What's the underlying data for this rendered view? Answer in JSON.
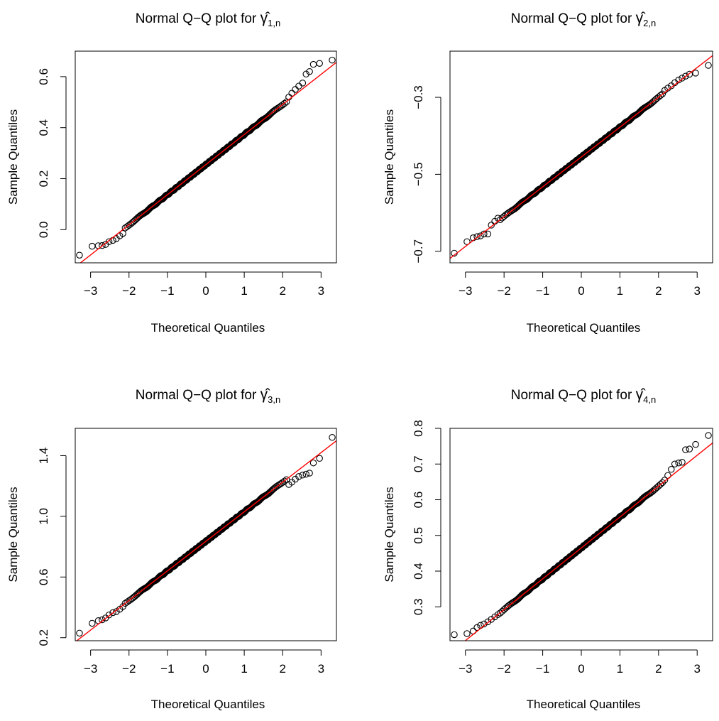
{
  "figure": {
    "background": "#ffffff",
    "point_color": "#000000",
    "line_color": "#ff0000"
  },
  "chart_data": [
    {
      "type": "scatter",
      "title": "Normal Q−Q plot for ",
      "title_symbol": "γ̂",
      "title_subscript": "1,n",
      "xlabel": "Theoretical Quantiles",
      "ylabel": "Sample Quantiles",
      "xlim": [
        -3.4,
        3.4
      ],
      "ylim": [
        -0.13,
        0.7
      ],
      "xticks": [
        "−3",
        "−2",
        "−1",
        "0",
        "1",
        "2",
        "3"
      ],
      "xtick_values": [
        -3,
        -2,
        -1,
        0,
        1,
        2,
        3
      ],
      "yticks": [
        "0.0",
        "0.2",
        "0.4",
        "0.6"
      ],
      "ytick_values": [
        0.0,
        0.2,
        0.4,
        0.6
      ],
      "qq_line": {
        "intercept": 0.255,
        "slope": 0.118
      },
      "tail_points": [
        [
          -3.29,
          -0.1
        ],
        [
          -2.96,
          -0.065
        ],
        [
          -2.8,
          -0.063
        ],
        [
          -2.7,
          -0.062
        ],
        [
          -2.61,
          -0.058
        ],
        [
          -2.52,
          -0.047
        ],
        [
          -2.42,
          -0.042
        ],
        [
          -2.33,
          -0.035
        ],
        [
          -2.24,
          -0.024
        ],
        [
          -2.16,
          -0.015
        ],
        [
          2.16,
          0.52
        ],
        [
          2.24,
          0.535
        ],
        [
          2.33,
          0.55
        ],
        [
          2.42,
          0.563
        ],
        [
          2.52,
          0.575
        ],
        [
          2.61,
          0.61
        ],
        [
          2.7,
          0.62
        ],
        [
          2.8,
          0.648
        ],
        [
          2.96,
          0.652
        ],
        [
          3.29,
          0.665
        ]
      ]
    },
    {
      "type": "scatter",
      "title": "Normal Q−Q plot for ",
      "title_symbol": "γ̂",
      "title_subscript": "2,n",
      "xlabel": "Theoretical Quantiles",
      "ylabel": "Sample Quantiles",
      "xlim": [
        -3.4,
        3.4
      ],
      "ylim": [
        -0.73,
        -0.18
      ],
      "xticks": [
        "−3",
        "−2",
        "−1",
        "0",
        "1",
        "2",
        "3"
      ],
      "xtick_values": [
        -3,
        -2,
        -1,
        0,
        1,
        2,
        3
      ],
      "yticks": [
        "−0.7",
        "−0.5",
        "−0.3"
      ],
      "ytick_values": [
        -0.7,
        -0.5,
        -0.3
      ],
      "qq_line": {
        "intercept": -0.455,
        "slope": 0.0775
      },
      "tail_points": [
        [
          -3.29,
          -0.705
        ],
        [
          -2.96,
          -0.675
        ],
        [
          -2.8,
          -0.665
        ],
        [
          -2.7,
          -0.662
        ],
        [
          -2.61,
          -0.66
        ],
        [
          -2.52,
          -0.655
        ],
        [
          -2.42,
          -0.655
        ],
        [
          -2.33,
          -0.632
        ],
        [
          -2.24,
          -0.622
        ],
        [
          -2.16,
          -0.614
        ],
        [
          2.16,
          -0.282
        ],
        [
          2.24,
          -0.276
        ],
        [
          2.33,
          -0.27
        ],
        [
          2.42,
          -0.262
        ],
        [
          2.52,
          -0.255
        ],
        [
          2.61,
          -0.25
        ],
        [
          2.7,
          -0.245
        ],
        [
          2.8,
          -0.24
        ],
        [
          2.96,
          -0.237
        ],
        [
          3.29,
          -0.217
        ]
      ]
    },
    {
      "type": "scatter",
      "title": "Normal Q−Q plot for ",
      "title_symbol": "γ̂",
      "title_subscript": "3,n",
      "xlabel": "Theoretical Quantiles",
      "ylabel": "Sample Quantiles",
      "xlim": [
        -3.4,
        3.4
      ],
      "ylim": [
        0.18,
        1.58
      ],
      "xticks": [
        "−3",
        "−2",
        "−1",
        "0",
        "1",
        "2",
        "3"
      ],
      "xtick_values": [
        -3,
        -2,
        -1,
        0,
        1,
        2,
        3
      ],
      "yticks": [
        "0.2",
        "0.6",
        "1.0",
        "1.4"
      ],
      "ytick_values": [
        0.2,
        0.6,
        1.0,
        1.4
      ],
      "qq_line": {
        "intercept": 0.835,
        "slope": 0.195
      },
      "tail_points": [
        [
          -3.29,
          0.23
        ],
        [
          -2.96,
          0.295
        ],
        [
          -2.8,
          0.312
        ],
        [
          -2.7,
          0.318
        ],
        [
          -2.61,
          0.33
        ],
        [
          -2.52,
          0.35
        ],
        [
          -2.42,
          0.365
        ],
        [
          -2.33,
          0.372
        ],
        [
          -2.24,
          0.388
        ],
        [
          -2.16,
          0.405
        ],
        [
          2.16,
          1.21
        ],
        [
          2.24,
          1.225
        ],
        [
          2.33,
          1.245
        ],
        [
          2.42,
          1.262
        ],
        [
          2.52,
          1.272
        ],
        [
          2.61,
          1.278
        ],
        [
          2.7,
          1.285
        ],
        [
          2.8,
          1.352
        ],
        [
          2.96,
          1.382
        ],
        [
          3.29,
          1.52
        ]
      ]
    },
    {
      "type": "scatter",
      "title": "Normal Q−Q plot for ",
      "title_symbol": "γ̂",
      "title_subscript": "4,n",
      "xlabel": "Theoretical Quantiles",
      "ylabel": "Sample Quantiles",
      "xlim": [
        -3.4,
        3.4
      ],
      "ylim": [
        0.205,
        0.8
      ],
      "xticks": [
        "−3",
        "−2",
        "−1",
        "0",
        "1",
        "2",
        "3"
      ],
      "xtick_values": [
        -3,
        -2,
        -1,
        0,
        1,
        2,
        3
      ],
      "yticks": [
        "0.3",
        "0.4",
        "0.5",
        "0.6",
        "0.7",
        "0.8"
      ],
      "ytick_values": [
        0.3,
        0.4,
        0.5,
        0.6,
        0.7,
        0.8
      ],
      "qq_line": {
        "intercept": 0.465,
        "slope": 0.0865
      },
      "tail_points": [
        [
          -3.29,
          0.222
        ],
        [
          -2.96,
          0.225
        ],
        [
          -2.8,
          0.232
        ],
        [
          -2.7,
          0.242
        ],
        [
          -2.61,
          0.248
        ],
        [
          -2.52,
          0.252
        ],
        [
          -2.42,
          0.258
        ],
        [
          -2.33,
          0.265
        ],
        [
          -2.24,
          0.272
        ],
        [
          -2.16,
          0.278
        ],
        [
          2.16,
          0.655
        ],
        [
          2.24,
          0.668
        ],
        [
          2.33,
          0.685
        ],
        [
          2.42,
          0.7
        ],
        [
          2.52,
          0.703
        ],
        [
          2.61,
          0.705
        ],
        [
          2.7,
          0.74
        ],
        [
          2.8,
          0.742
        ],
        [
          2.96,
          0.755
        ],
        [
          3.29,
          0.78
        ]
      ]
    }
  ]
}
